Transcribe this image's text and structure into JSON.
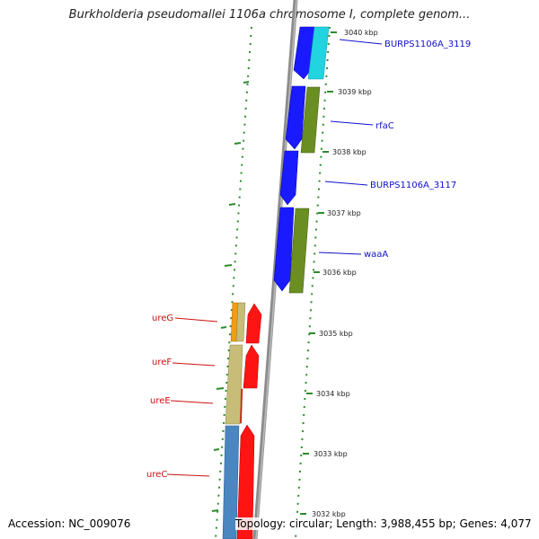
{
  "title": "Burkholderia pseudomallei 1106a chromosome I, complete genom...",
  "footer": {
    "accession": "Accession: NC_009076",
    "topology": "Topology: circular; Length: 3,988,455 bp; Genes: 4,077"
  },
  "ruler": {
    "ticks": [
      "3040 kbp",
      "3039 kbp",
      "3038 kbp",
      "3037 kbp",
      "3036 kbp",
      "3035 kbp",
      "3034 kbp",
      "3033 kbp",
      "3032 kbp"
    ]
  },
  "genes": [
    {
      "name": "BURPS1106A_3119",
      "color": "#1010cc"
    },
    {
      "name": "rfaC",
      "color": "#1010cc"
    },
    {
      "name": "BURPS1106A_3117",
      "color": "#1010cc"
    },
    {
      "name": "waaA",
      "color": "#1010cc"
    },
    {
      "name": "ureG",
      "color": "#cc1010"
    },
    {
      "name": "ureF",
      "color": "#cc1010"
    },
    {
      "name": "ureE",
      "color": "#cc1010"
    },
    {
      "name": "ureC",
      "color": "#cc1010"
    }
  ],
  "colors": {
    "backbone": "#8c8c8c",
    "cds_forward": "#1a1aff",
    "cds_reverse": "#ff1414",
    "gene_cyan": "#22d3e0",
    "gene_olive": "#6b8e23",
    "gene_orange": "#f39c12",
    "gene_khaki": "#c8bd78",
    "gene_steelblue": "#4a86c0",
    "gc_skew": "#2e8b2e"
  }
}
